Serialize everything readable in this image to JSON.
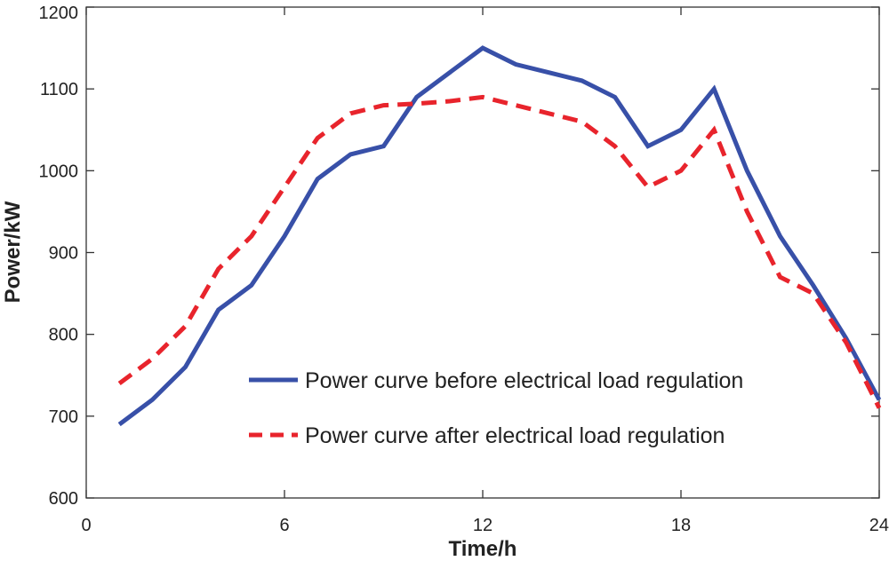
{
  "chart_data": {
    "type": "line",
    "title": "",
    "xlabel": "Time/h",
    "ylabel": "Power/kW",
    "xlim": [
      0,
      24
    ],
    "ylim": [
      600,
      1200
    ],
    "xticks": [
      0,
      6,
      12,
      18,
      24
    ],
    "yticks": [
      600,
      700,
      800,
      900,
      1000,
      1100,
      1200
    ],
    "grid": false,
    "legend_position": "bottom-right",
    "x": [
      1,
      2,
      3,
      4,
      5,
      6,
      7,
      8,
      9,
      10,
      11,
      12,
      13,
      14,
      15,
      16,
      17,
      18,
      19,
      20,
      21,
      22,
      23,
      24
    ],
    "series": [
      {
        "name": "Power curve before electrical load regulation",
        "color": "#3850a8",
        "style": "solid",
        "values": [
          690,
          720,
          760,
          830,
          860,
          920,
          990,
          1020,
          1030,
          1090,
          1120,
          1150,
          1130,
          1120,
          1110,
          1090,
          1030,
          1050,
          1100,
          1000,
          920,
          860,
          795,
          720
        ]
      },
      {
        "name": "Power curve after electrical load regulation",
        "color": "#e8242c",
        "style": "dashed",
        "values": [
          740,
          770,
          810,
          880,
          920,
          980,
          1040,
          1070,
          1080,
          1082,
          1085,
          1090,
          1080,
          1070,
          1060,
          1030,
          980,
          1000,
          1050,
          950,
          870,
          850,
          790,
          710
        ]
      }
    ]
  }
}
